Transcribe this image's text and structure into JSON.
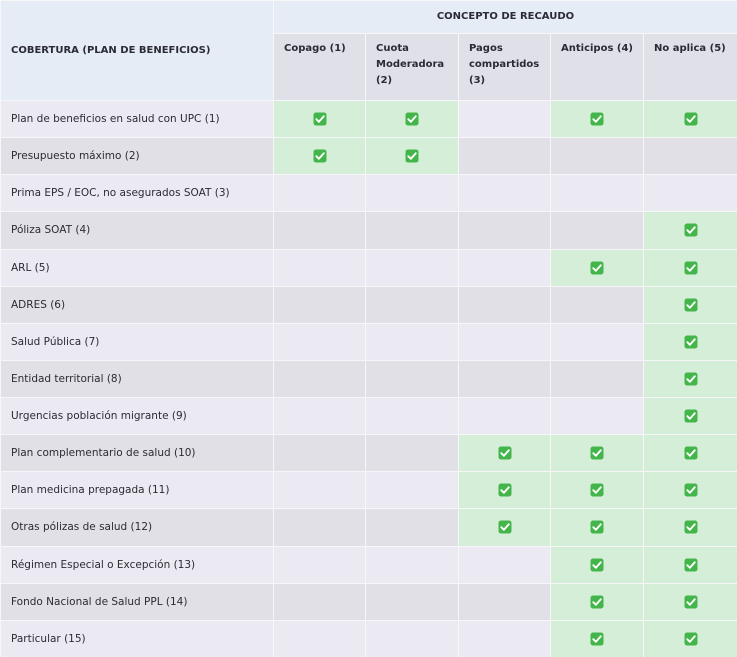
{
  "header": {
    "row_header": "COBERTURA (PLAN DE BENEFICIOS)",
    "group": "CONCEPTO DE RECAUDO",
    "columns": [
      "Copago (1)",
      "Cuota Moderadora (2)",
      "Pagos compartidos (3)",
      "Anticipos (4)",
      "No aplica (5)"
    ]
  },
  "table": {
    "rows": [
      {
        "label": "Plan de beneficios en salud con UPC (1)",
        "cells": [
          true,
          true,
          false,
          true,
          true
        ]
      },
      {
        "label": "Presupuesto máximo (2)",
        "cells": [
          true,
          true,
          false,
          false,
          false
        ]
      },
      {
        "label": "Prima EPS / EOC, no asegurados SOAT (3)",
        "cells": [
          false,
          false,
          false,
          false,
          false
        ]
      },
      {
        "label": "Póliza SOAT (4)",
        "cells": [
          false,
          false,
          false,
          false,
          true
        ]
      },
      {
        "label": "ARL (5)",
        "cells": [
          false,
          false,
          false,
          true,
          true
        ]
      },
      {
        "label": "ADRES (6)",
        "cells": [
          false,
          false,
          false,
          false,
          true
        ]
      },
      {
        "label": "Salud Pública (7)",
        "cells": [
          false,
          false,
          false,
          false,
          true
        ]
      },
      {
        "label": "Entidad territorial (8)",
        "cells": [
          false,
          false,
          false,
          false,
          true
        ]
      },
      {
        "label": "Urgencias población migrante (9)",
        "cells": [
          false,
          false,
          false,
          false,
          true
        ]
      },
      {
        "label": "Plan complementario de salud (10)",
        "cells": [
          false,
          false,
          true,
          true,
          true
        ]
      },
      {
        "label": "Plan medicina prepagada (11)",
        "cells": [
          false,
          false,
          true,
          true,
          true
        ]
      },
      {
        "label": "Otras pólizas de salud (12)",
        "cells": [
          false,
          false,
          true,
          true,
          true
        ]
      },
      {
        "label": "Régimen Especial o Excepción (13)",
        "cells": [
          false,
          false,
          false,
          true,
          true
        ]
      },
      {
        "label": "Fondo Nacional de Salud PPL (14)",
        "cells": [
          false,
          false,
          false,
          true,
          true
        ]
      },
      {
        "label": "Particular (15)",
        "cells": [
          false,
          false,
          false,
          true,
          true
        ]
      }
    ]
  }
}
